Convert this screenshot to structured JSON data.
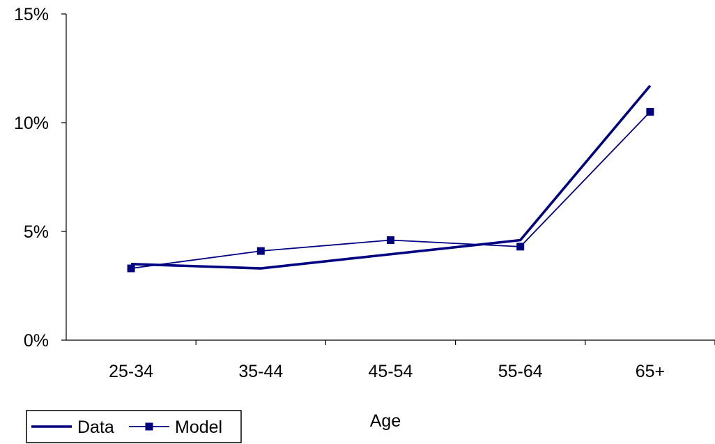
{
  "chart_data": {
    "type": "line",
    "categories": [
      "25-34",
      "35-44",
      "45-54",
      "55-64",
      "65+"
    ],
    "series": [
      {
        "name": "Data",
        "values": [
          3.5,
          3.3,
          3.95,
          4.6,
          11.7
        ],
        "color": "#000080",
        "marker": "none"
      },
      {
        "name": "Model",
        "values": [
          3.3,
          4.1,
          4.6,
          4.3,
          10.5
        ],
        "color": "#000080",
        "marker": "square"
      }
    ],
    "yticks": [
      {
        "value": 0,
        "label": "0%"
      },
      {
        "value": 5,
        "label": "5%"
      },
      {
        "value": 10,
        "label": "10%"
      },
      {
        "value": 15,
        "label": "15%"
      }
    ],
    "ylim": [
      0,
      15
    ],
    "xlabel": "Age",
    "ylabel": "",
    "grid": false,
    "legend_position": "bottom-left"
  }
}
